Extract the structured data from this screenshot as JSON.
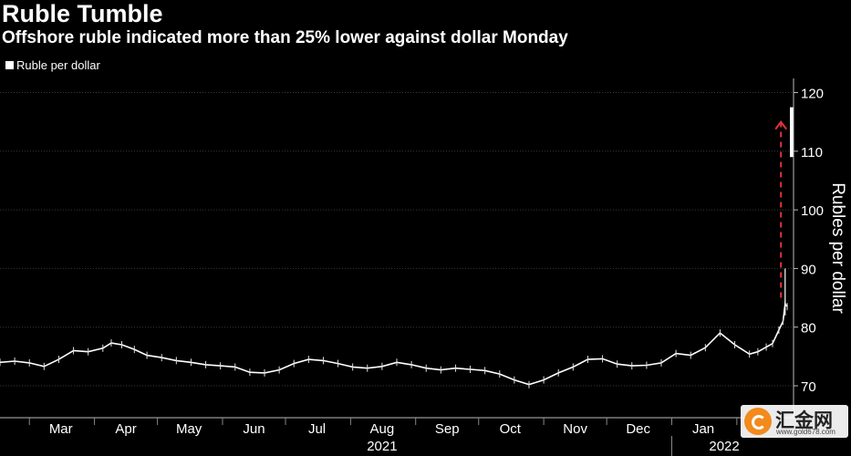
{
  "title": "Ruble Tumble",
  "subtitle": "Offshore ruble indicated more than 25% lower against dollar Monday",
  "legend_label": "Rubles per dollar",
  "chart_data": {
    "type": "candlestick",
    "title": "Ruble Tumble",
    "subtitle": "Offshore ruble indicated more than 25% lower against dollar Monday",
    "ylabel": "Rubles per dollar",
    "legend": [
      {
        "name": "Ruble per dollar",
        "color": "#ffffff"
      }
    ],
    "legend_placement": "top-left",
    "ylim": [
      68,
      122
    ],
    "yticks": [
      70,
      80,
      90,
      100,
      110,
      120
    ],
    "xlim": [
      "2021-02-15",
      "2022-02-28"
    ],
    "month_labels": [
      {
        "label": "Mar",
        "date": "2021-03-16"
      },
      {
        "label": "Apr",
        "date": "2021-04-16"
      },
      {
        "label": "May",
        "date": "2021-05-16"
      },
      {
        "label": "Jun",
        "date": "2021-06-16"
      },
      {
        "label": "Jul",
        "date": "2021-07-16"
      },
      {
        "label": "Aug",
        "date": "2021-08-16"
      },
      {
        "label": "Sep",
        "date": "2021-09-16"
      },
      {
        "label": "Oct",
        "date": "2021-10-16"
      },
      {
        "label": "Nov",
        "date": "2021-11-16"
      },
      {
        "label": "Dec",
        "date": "2021-12-16"
      },
      {
        "label": "Jan",
        "date": "2022-01-16"
      },
      {
        "label": "F",
        "date": "2022-02-12"
      }
    ],
    "year_labels": [
      {
        "label": "2021",
        "date": "2021-08-16"
      },
      {
        "label": "2022",
        "date": "2022-01-26"
      }
    ],
    "year_divider": "2022-01-01",
    "grid": "horizontal",
    "series": [
      {
        "name": "Ruble per dollar",
        "points": [
          {
            "x": "2021-02-15",
            "y": 74.0
          },
          {
            "x": "2021-02-22",
            "y": 74.2
          },
          {
            "x": "2021-03-01",
            "y": 73.9
          },
          {
            "x": "2021-03-08",
            "y": 73.3
          },
          {
            "x": "2021-03-15",
            "y": 74.5
          },
          {
            "x": "2021-03-22",
            "y": 76.0
          },
          {
            "x": "2021-03-29",
            "y": 75.8
          },
          {
            "x": "2021-04-05",
            "y": 76.4
          },
          {
            "x": "2021-04-09",
            "y": 77.3
          },
          {
            "x": "2021-04-14",
            "y": 77.0
          },
          {
            "x": "2021-04-20",
            "y": 76.2
          },
          {
            "x": "2021-04-26",
            "y": 75.2
          },
          {
            "x": "2021-05-03",
            "y": 74.8
          },
          {
            "x": "2021-05-10",
            "y": 74.3
          },
          {
            "x": "2021-05-17",
            "y": 74.0
          },
          {
            "x": "2021-05-24",
            "y": 73.6
          },
          {
            "x": "2021-05-31",
            "y": 73.4
          },
          {
            "x": "2021-06-07",
            "y": 73.2
          },
          {
            "x": "2021-06-14",
            "y": 72.3
          },
          {
            "x": "2021-06-21",
            "y": 72.2
          },
          {
            "x": "2021-06-28",
            "y": 72.7
          },
          {
            "x": "2021-07-05",
            "y": 73.8
          },
          {
            "x": "2021-07-12",
            "y": 74.5
          },
          {
            "x": "2021-07-19",
            "y": 74.3
          },
          {
            "x": "2021-07-26",
            "y": 73.8
          },
          {
            "x": "2021-08-02",
            "y": 73.2
          },
          {
            "x": "2021-08-09",
            "y": 73.0
          },
          {
            "x": "2021-08-16",
            "y": 73.3
          },
          {
            "x": "2021-08-23",
            "y": 74.0
          },
          {
            "x": "2021-08-30",
            "y": 73.6
          },
          {
            "x": "2021-09-06",
            "y": 73.0
          },
          {
            "x": "2021-09-13",
            "y": 72.7
          },
          {
            "x": "2021-09-20",
            "y": 73.0
          },
          {
            "x": "2021-09-27",
            "y": 72.8
          },
          {
            "x": "2021-10-04",
            "y": 72.6
          },
          {
            "x": "2021-10-11",
            "y": 72.0
          },
          {
            "x": "2021-10-18",
            "y": 71.0
          },
          {
            "x": "2021-10-25",
            "y": 70.2
          },
          {
            "x": "2021-11-01",
            "y": 71.0
          },
          {
            "x": "2021-11-08",
            "y": 72.2
          },
          {
            "x": "2021-11-15",
            "y": 73.2
          },
          {
            "x": "2021-11-22",
            "y": 74.5
          },
          {
            "x": "2021-11-29",
            "y": 74.6
          },
          {
            "x": "2021-12-06",
            "y": 73.7
          },
          {
            "x": "2021-12-13",
            "y": 73.4
          },
          {
            "x": "2021-12-20",
            "y": 73.5
          },
          {
            "x": "2021-12-27",
            "y": 73.9
          },
          {
            "x": "2022-01-03",
            "y": 75.5
          },
          {
            "x": "2022-01-10",
            "y": 75.2
          },
          {
            "x": "2022-01-17",
            "y": 76.5
          },
          {
            "x": "2022-01-24",
            "y": 79.0
          },
          {
            "x": "2022-01-31",
            "y": 77.0
          },
          {
            "x": "2022-02-07",
            "y": 75.4
          },
          {
            "x": "2022-02-11",
            "y": 75.8
          },
          {
            "x": "2022-02-15",
            "y": 76.6
          },
          {
            "x": "2022-02-18",
            "y": 77.2
          },
          {
            "x": "2022-02-21",
            "y": 79.5
          },
          {
            "x": "2022-02-23",
            "y": 81.0
          },
          {
            "x": "2022-02-24",
            "y": 84.0
          },
          {
            "x": "2022-02-25",
            "y": 83.5
          }
        ]
      }
    ],
    "final_candle": {
      "x": "2022-02-28",
      "low": 109,
      "high": 117.5
    },
    "annotation": {
      "type": "dashed-arrow",
      "color": "#e0323a",
      "x": "2022-02-22",
      "from": 85,
      "to": 115
    }
  },
  "watermark": {
    "brand": "汇金网",
    "url": "www.gold678.com",
    "accent": "#f28a1c"
  }
}
